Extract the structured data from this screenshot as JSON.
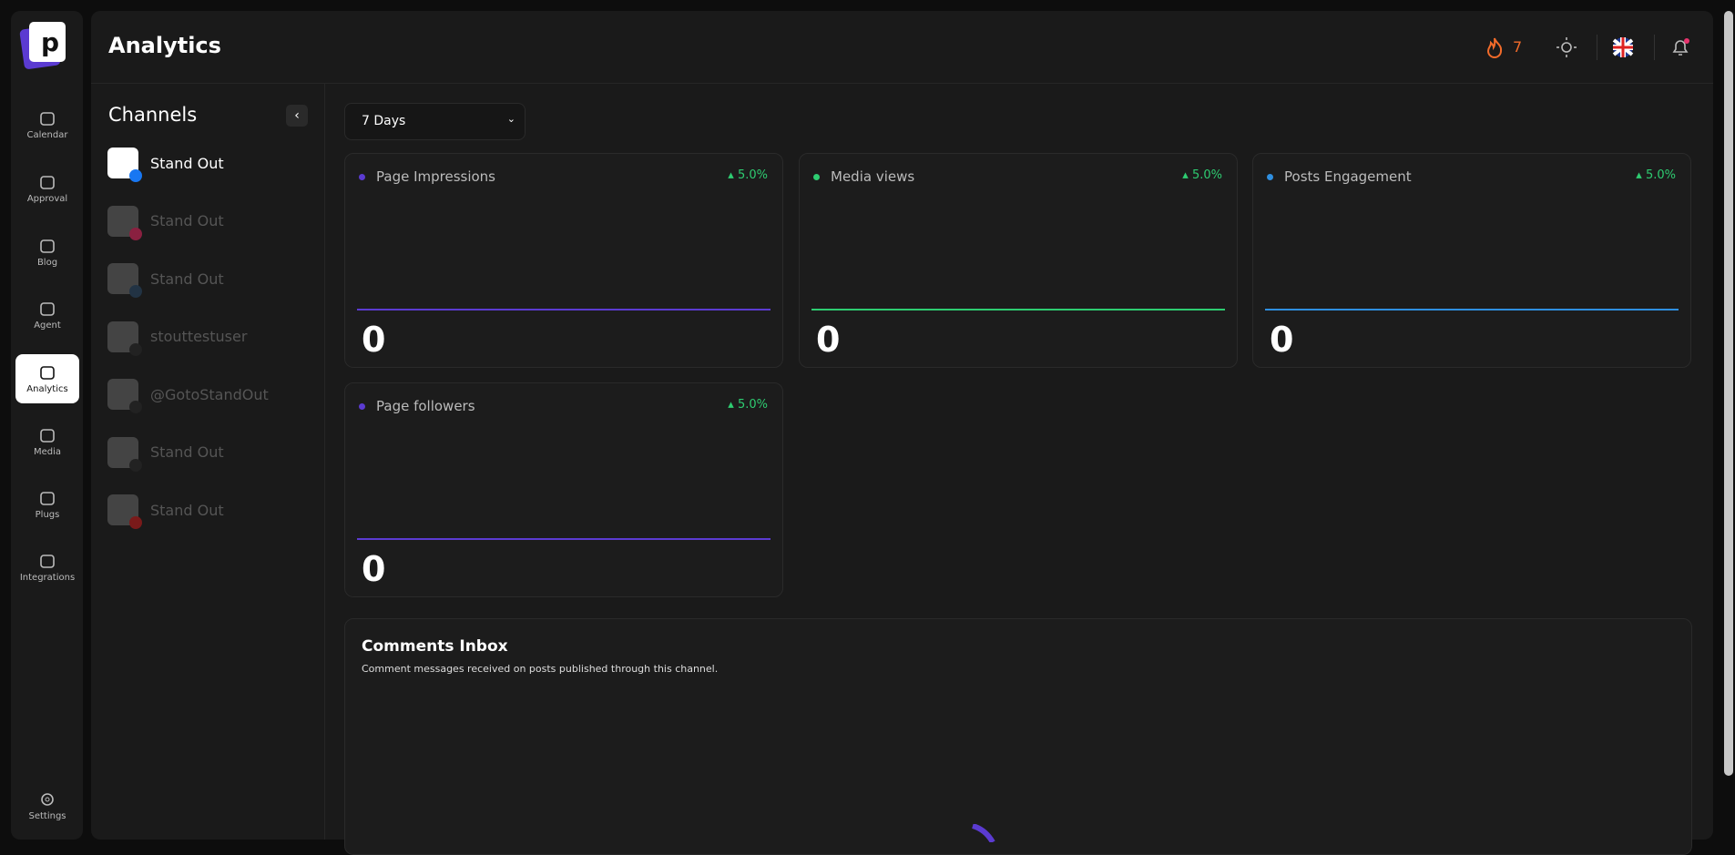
{
  "header": {
    "title": "Analytics",
    "streak": "7"
  },
  "nav": [
    "Calendar",
    "Approval",
    "Blog",
    "Agent",
    "Analytics",
    "Media",
    "Plugs",
    "Integrations"
  ],
  "nav_active": 4,
  "settings": "Settings",
  "channels": {
    "title": "Channels",
    "items": [
      {
        "name": "Stand Out",
        "network": "facebook",
        "active": true
      },
      {
        "name": "Stand Out",
        "network": "instagram",
        "active": false
      },
      {
        "name": "Stand Out",
        "network": "linkedin",
        "active": false
      },
      {
        "name": "stouttestuser",
        "network": "tiktok",
        "active": false
      },
      {
        "name": "@GotoStandOut",
        "network": "tiktok",
        "active": false
      },
      {
        "name": "Stand Out",
        "network": "x",
        "active": false
      },
      {
        "name": "Stand Out",
        "network": "youtube",
        "active": false
      }
    ]
  },
  "period": "7 Days",
  "cards": [
    {
      "title": "Page Impressions",
      "change": "5.0%",
      "value": "0",
      "color": "#5b3bd1"
    },
    {
      "title": "Media views",
      "change": "5.0%",
      "value": "0",
      "color": "#2ecc71"
    },
    {
      "title": "Posts Engagement",
      "change": "5.0%",
      "value": "0",
      "color": "#2f8fe0"
    },
    {
      "title": "Page followers",
      "change": "5.0%",
      "value": "0",
      "color": "#5b3bd1"
    }
  ],
  "comments": {
    "title": "Comments Inbox",
    "description": "Comment messages received on posts published through this channel."
  }
}
